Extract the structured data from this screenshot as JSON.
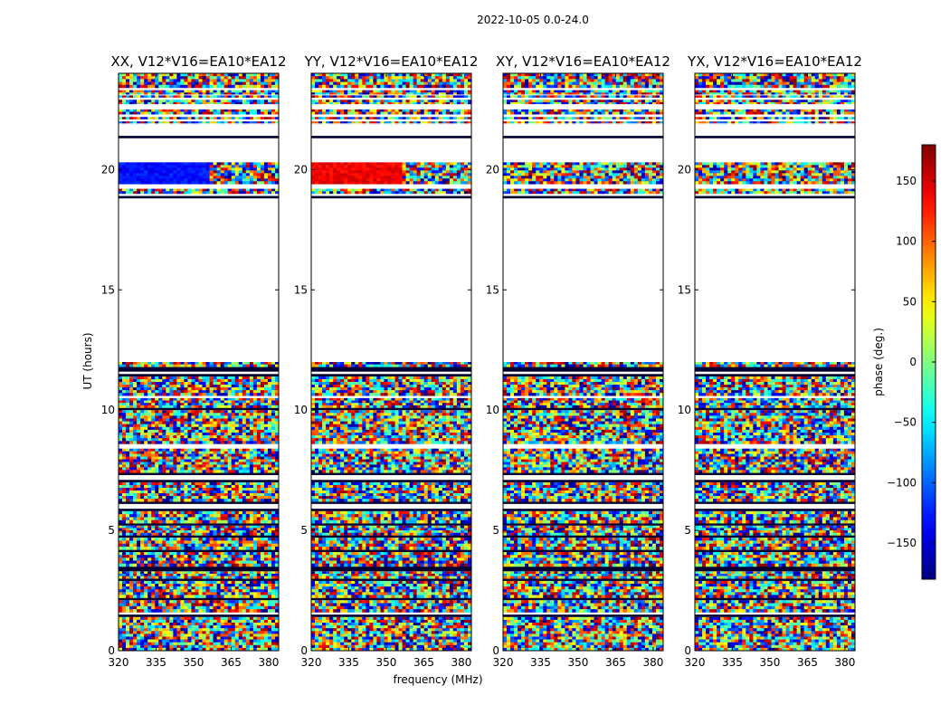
{
  "chart_data": {
    "type": "heatmap",
    "title": "2022-10-05 0.0-24.0",
    "xlabel": "frequency (MHz)",
    "ylabel": "UT (hours)",
    "xlim": [
      320,
      384
    ],
    "ylim": [
      0,
      24
    ],
    "xticks": [
      "320",
      "335",
      "350",
      "365",
      "380"
    ],
    "yticks": [
      "0",
      "5",
      "10",
      "15",
      "20"
    ],
    "colorbar": {
      "label": "phase (deg.)",
      "range": [
        -180,
        180
      ],
      "ticks": [
        "150",
        "100",
        "50",
        "0",
        "−50",
        "−100",
        "−150"
      ],
      "tick_values": [
        150,
        100,
        50,
        0,
        -50,
        -100,
        -150
      ],
      "colormap": "jet"
    },
    "panels": [
      {
        "name": "XX",
        "title": "XX, V12*V16=EA10*EA12",
        "upper_block_phase": -130
      },
      {
        "name": "YY",
        "title": "YY, V12*V16=EA10*EA12",
        "upper_block_phase": 140
      },
      {
        "name": "XY",
        "title": "XY, V12*V16=EA10*EA12",
        "upper_block_phase": null
      },
      {
        "name": "YX",
        "title": "YX, V12*V16=EA10*EA12",
        "upper_block_phase": null
      }
    ],
    "data_gaps_ut": [
      [
        0.0,
        0.0
      ],
      [
        12.1,
        18.8
      ],
      [
        21.3,
        21.8
      ]
    ]
  }
}
